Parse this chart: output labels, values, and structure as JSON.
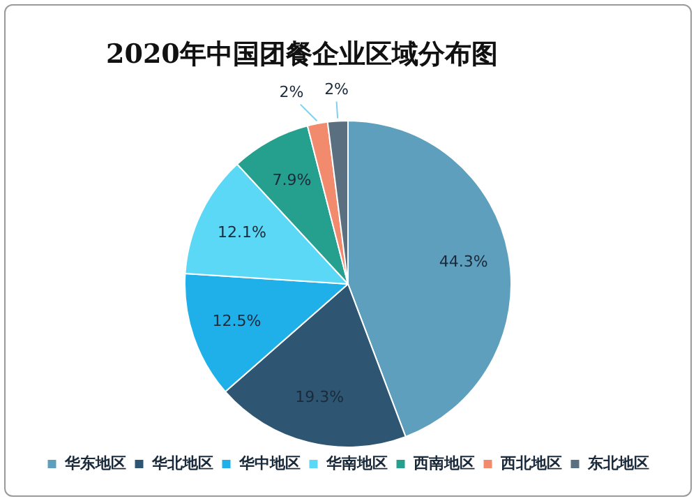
{
  "chart_data": {
    "type": "pie",
    "title": "2020年中国团餐企业区域分布图",
    "categories": [
      "华东地区",
      "华北地区",
      "华中地区",
      "华南地区",
      "西南地区",
      "西北地区",
      "东北地区"
    ],
    "values": [
      44.3,
      19.3,
      12.5,
      12.1,
      7.9,
      2,
      2
    ],
    "value_labels": [
      "44.3%",
      "19.3%",
      "12.5%",
      "12.1%",
      "7.9%",
      "2%",
      "2%"
    ],
    "colors": [
      "#5f9fbe",
      "#2e5672",
      "#1fb0ea",
      "#5ad8f5",
      "#26a08e",
      "#f28a6e",
      "#5a6f80"
    ],
    "legend": "bottom"
  }
}
